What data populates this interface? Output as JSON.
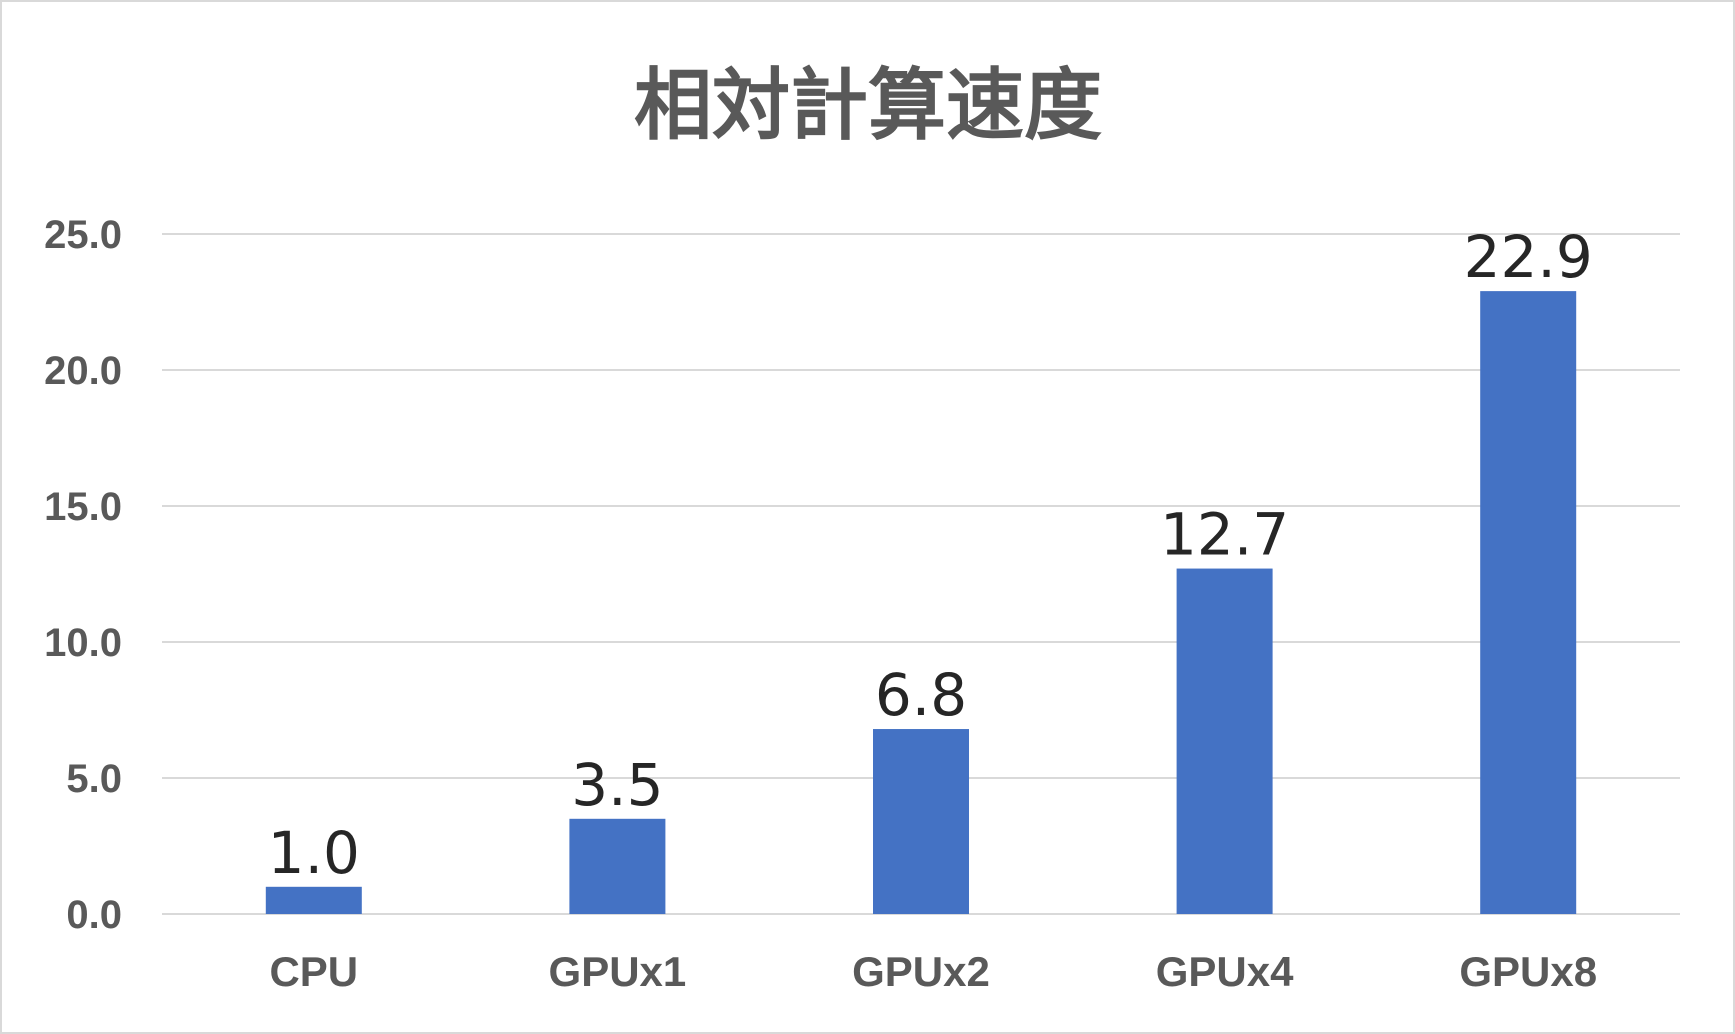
{
  "chart_data": {
    "type": "bar",
    "title": "相対計算速度",
    "categories": [
      "CPU",
      "GPUx1",
      "GPUx2",
      "GPUx4",
      "GPUx8"
    ],
    "values": [
      1.0,
      3.5,
      6.8,
      12.7,
      22.9
    ],
    "data_labels": [
      "1.0",
      "3.5",
      "6.8",
      "12.7",
      "22.9"
    ],
    "ylim": [
      0,
      25
    ],
    "yticks": [
      "0.0",
      "5.0",
      "10.0",
      "15.0",
      "20.0",
      "25.0"
    ],
    "bar_color": "#4472C4",
    "grid_color": "#d9d9d9",
    "grid": true,
    "legend": "none"
  }
}
